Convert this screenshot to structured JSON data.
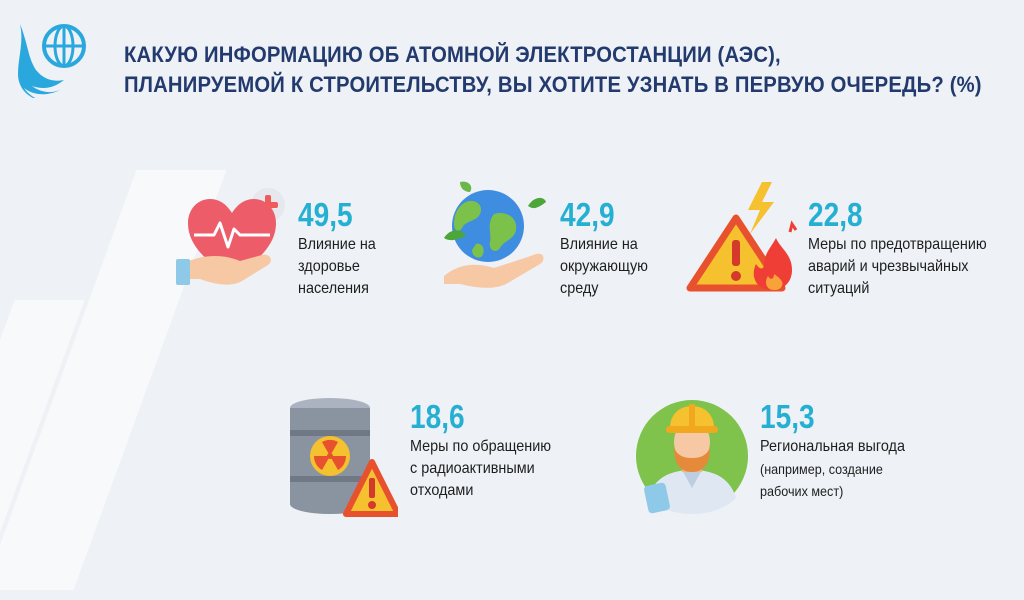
{
  "title": {
    "line1": "КАКУЮ ИНФОРМАЦИЮ ОБ АТОМНОЙ ЭЛЕКТРОСТАНЦИИ (АЭС),",
    "line2": "ПЛАНИРУЕМОЙ К СТРОИТЕЛЬСТВУ, ВЫ ХОТИТЕ УЗНАТЬ В ПЕРВУЮ ОЧЕРЕДЬ? (%)"
  },
  "stats": [
    {
      "value": "49,5",
      "label": [
        "Влияние на",
        "здоровье",
        "населения"
      ],
      "icon": "heart-hand-icon"
    },
    {
      "value": "42,9",
      "label": [
        "Влияние на",
        "окружающую",
        "среду"
      ],
      "icon": "earth-hand-icon"
    },
    {
      "value": "22,8",
      "label": [
        "Меры по предотвращению",
        "аварий и чрезвычайных",
        "ситуаций"
      ],
      "icon": "warning-fire-icon"
    },
    {
      "value": "18,6",
      "label": [
        "Меры по обращению",
        "с радиоактивными",
        "отходами"
      ],
      "icon": "radioactive-barrel-icon"
    },
    {
      "value": "15,3",
      "label": [
        "Региональная выгода",
        "(например, создание",
        "рабочих мест)"
      ],
      "icon": "worker-icon"
    }
  ],
  "colors": {
    "accent": "#25b0d3",
    "title": "#233a6e",
    "background": "#eef1f5"
  }
}
